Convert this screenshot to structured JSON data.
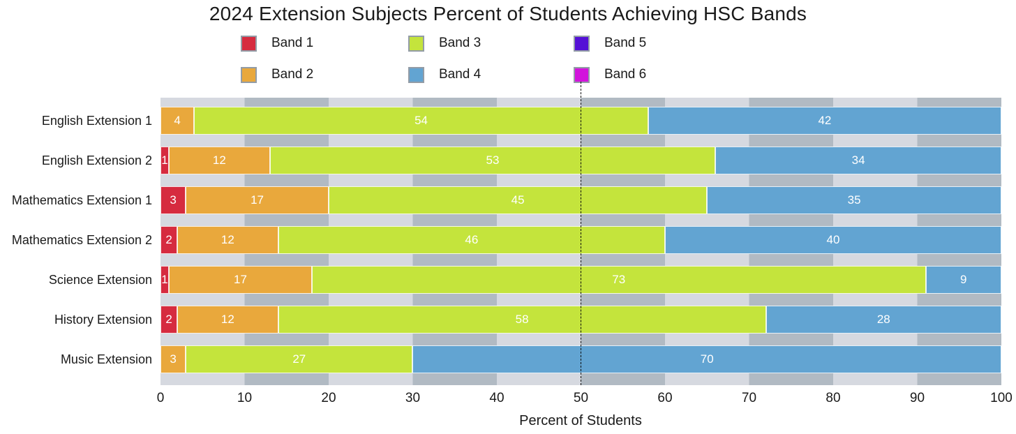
{
  "chart_data": {
    "type": "bar",
    "orientation": "horizontal",
    "stacked": true,
    "title": "2024 Extension Subjects Percent of Students Achieving HSC Bands",
    "xlabel": "Percent of Students",
    "xlim": [
      0,
      100
    ],
    "xticks": [
      0,
      10,
      20,
      30,
      40,
      50,
      60,
      70,
      80,
      90,
      100
    ],
    "categories": [
      "English Extension 1",
      "English Extension 2",
      "Mathematics Extension 1",
      "Mathematics Extension 2",
      "Science Extension",
      "History Extension",
      "Music Extension"
    ],
    "series": [
      {
        "name": "Band 1",
        "color": "#D62B3F",
        "values": [
          0,
          1,
          3,
          2,
          1,
          2,
          0
        ]
      },
      {
        "name": "Band 2",
        "color": "#E9A83C",
        "values": [
          4,
          12,
          17,
          12,
          17,
          12,
          3
        ]
      },
      {
        "name": "Band 3",
        "color": "#C4E43C",
        "values": [
          54,
          53,
          45,
          46,
          73,
          58,
          27
        ]
      },
      {
        "name": "Band 4",
        "color": "#62A4D2",
        "values": [
          42,
          34,
          35,
          40,
          9,
          28,
          70
        ]
      },
      {
        "name": "Band 5",
        "color": "#5410D6",
        "values": [
          0,
          0,
          0,
          0,
          0,
          0,
          0
        ]
      },
      {
        "name": "Band 6",
        "color": "#D214DC",
        "values": [
          0,
          0,
          0,
          0,
          0,
          0,
          0
        ]
      }
    ],
    "bar_label_color": "#ffffff",
    "reference_line": {
      "x": 50,
      "style": "dashed",
      "color": "#0a0a0a"
    },
    "plot_background": {
      "stripe_light": "#D6D9E0",
      "stripe_dark": "#B1BAC3",
      "stripe_width_percent": 10
    },
    "legend": {
      "position": "top",
      "rows": 2,
      "columns": 3,
      "entries": [
        "Band 1",
        "Band 2",
        "Band 3",
        "Band 4",
        "Band 5",
        "Band 6"
      ]
    },
    "grid": false
  }
}
